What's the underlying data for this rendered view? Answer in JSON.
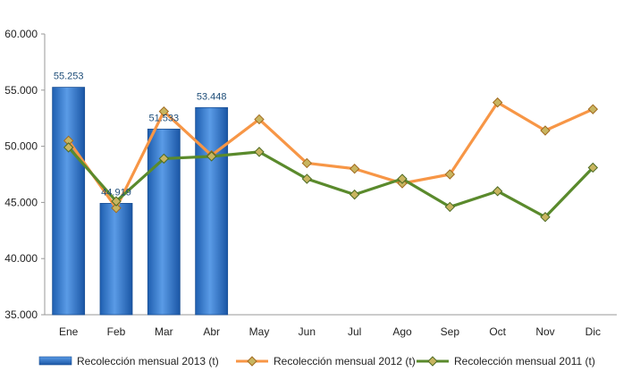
{
  "chart_data": {
    "type": "bar",
    "categories": [
      "Ene",
      "Feb",
      "Mar",
      "Abr",
      "May",
      "Jun",
      "Jul",
      "Ago",
      "Sep",
      "Oct",
      "Nov",
      "Dic"
    ],
    "ylim": [
      35000,
      60000
    ],
    "yticks": [
      35000,
      40000,
      45000,
      50000,
      55000,
      60000
    ],
    "ytick_labels": [
      "35.000",
      "40.000",
      "45.000",
      "50.000",
      "55.000",
      "60.000"
    ],
    "legend_position": "bottom",
    "series": [
      {
        "name": "Recolección mensual 2013 (t)",
        "type": "bar",
        "color": "#3a7fd5",
        "values": [
          55253,
          44919,
          51533,
          53448,
          null,
          null,
          null,
          null,
          null,
          null,
          null,
          null
        ],
        "data_labels": [
          "55.253",
          "44.919",
          "51.533",
          "53.448"
        ]
      },
      {
        "name": "Recolección mensual 2012 (t)",
        "type": "line",
        "color": "#f79646",
        "values": [
          50500,
          44500,
          53100,
          49200,
          52400,
          48500,
          48000,
          46700,
          47500,
          53900,
          51400,
          53300
        ]
      },
      {
        "name": "Recolección mensual 2011 (t)",
        "type": "line",
        "color": "#5a8a2c",
        "values": [
          49900,
          45100,
          48900,
          49100,
          49500,
          47100,
          45700,
          47100,
          44600,
          46000,
          43700,
          48100
        ]
      }
    ]
  }
}
